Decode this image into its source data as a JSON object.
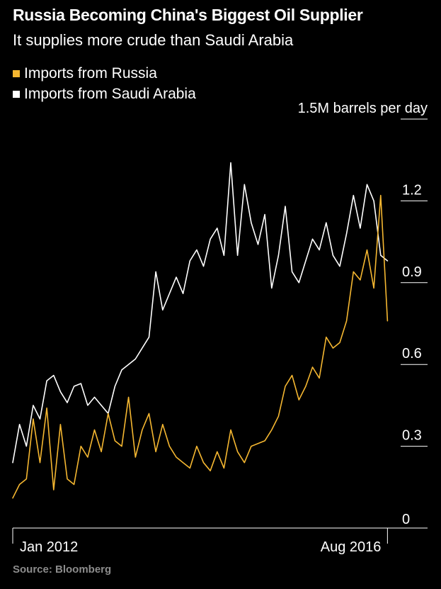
{
  "header": {
    "title": "Russia Becoming China's Biggest Oil Supplier",
    "subtitle": "It supplies more crude than Saudi Arabia"
  },
  "legend": [
    {
      "label": "Imports from Russia",
      "color": "#f5b731"
    },
    {
      "label": "Imports from Saudi Arabia",
      "color": "#ffffff"
    }
  ],
  "source": "Source: Bloomberg",
  "chart_data": {
    "type": "line",
    "title": "Russia Becoming China's Biggest Oil Supplier",
    "subtitle": "It supplies more crude than Saudi Arabia",
    "ylabel": "1.5M barrels per day",
    "ylim": [
      0,
      1.5
    ],
    "y_ticks": [
      0,
      0.3,
      0.6,
      0.9,
      1.2,
      1.5
    ],
    "y_tick_labels": [
      "0",
      "0.3",
      "0.6",
      "0.9",
      "1.2",
      "1.5M barrels per day"
    ],
    "x_tick_labels": [
      "Jan 2012",
      "Aug 2016"
    ],
    "x_label_positions": [
      0,
      55
    ],
    "x_range": [
      0,
      56
    ],
    "grid": false,
    "legend_position": "top-left",
    "x_unit": "months since Jan 2012",
    "series": [
      {
        "name": "Imports from Russia",
        "color": "#f5b731",
        "values": [
          0.11,
          0.16,
          0.18,
          0.4,
          0.24,
          0.44,
          0.14,
          0.38,
          0.18,
          0.16,
          0.3,
          0.26,
          0.36,
          0.28,
          0.42,
          0.32,
          0.3,
          0.48,
          0.26,
          0.36,
          0.42,
          0.28,
          0.38,
          0.3,
          0.26,
          0.24,
          0.22,
          0.3,
          0.24,
          0.21,
          0.28,
          0.22,
          0.36,
          0.28,
          0.24,
          0.3,
          0.31,
          0.32,
          0.36,
          0.41,
          0.52,
          0.56,
          0.47,
          0.52,
          0.59,
          0.55,
          0.7,
          0.66,
          0.68,
          0.76,
          0.94,
          0.91,
          1.02,
          0.88,
          1.22,
          0.76
        ]
      },
      {
        "name": "Imports from Saudi Arabia",
        "color": "#ffffff",
        "values": [
          0.24,
          0.38,
          0.3,
          0.45,
          0.4,
          0.54,
          0.56,
          0.5,
          0.46,
          0.52,
          0.53,
          0.45,
          0.48,
          0.45,
          0.42,
          0.52,
          0.58,
          0.6,
          0.62,
          0.66,
          0.7,
          0.94,
          0.8,
          0.86,
          0.92,
          0.86,
          0.98,
          1.02,
          0.96,
          1.06,
          1.1,
          1.0,
          1.34,
          1.0,
          1.26,
          1.12,
          1.04,
          1.15,
          0.88,
          1.0,
          1.18,
          0.94,
          0.9,
          0.98,
          1.06,
          1.02,
          1.12,
          1.0,
          0.96,
          1.08,
          1.22,
          1.1,
          1.26,
          1.2,
          1.0,
          0.98
        ]
      }
    ]
  }
}
